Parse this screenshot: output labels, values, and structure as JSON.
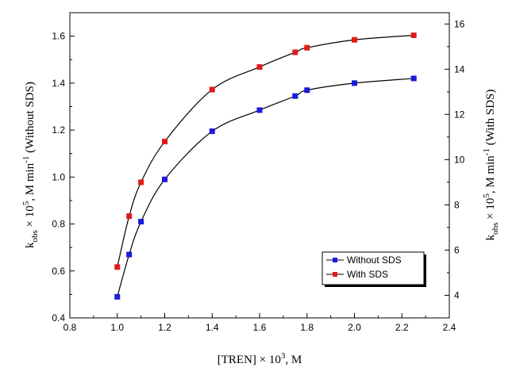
{
  "chart_data": {
    "type": "line",
    "xlabel": "[TREN] × 10",
    "xlabel_exponent": "3",
    "xlabel_unit": ", M",
    "ylabel_left": {
      "k": "k",
      "sub": "obs",
      "times": " × 10",
      "exp": "5",
      "unit": ", M min",
      "unit_exp": "-1",
      "note": " (Without SDS)"
    },
    "ylabel_right": {
      "k": "k",
      "sub": "obs",
      "times": " × 10",
      "exp": "5",
      "unit": ", M min",
      "unit_exp": "-1",
      "note": " (With SDS)"
    },
    "xlim": [
      0.8,
      2.4
    ],
    "x_ticks": [
      "0.8",
      "1.0",
      "1.2",
      "1.4",
      "1.6",
      "1.8",
      "2.0",
      "2.2",
      "2.4"
    ],
    "ylim_left": [
      0.4,
      1.7
    ],
    "y_ticks_left": [
      "0.4",
      "0.6",
      "0.8",
      "1.0",
      "1.2",
      "1.4",
      "1.6"
    ],
    "ylim_right": [
      3,
      16.5
    ],
    "y_ticks_right": [
      "4",
      "6",
      "8",
      "10",
      "12",
      "14",
      "16"
    ],
    "grid": false,
    "legend_position": "bottom-right",
    "series": [
      {
        "name": "Without SDS",
        "axis": "left",
        "color": "#1a1adb",
        "x": [
          1.0,
          1.05,
          1.1,
          1.2,
          1.4,
          1.6,
          1.75,
          1.8,
          2.0,
          2.25
        ],
        "y": [
          0.49,
          0.67,
          0.81,
          0.99,
          1.195,
          1.285,
          1.345,
          1.37,
          1.4,
          1.42
        ]
      },
      {
        "name": "With SDS",
        "axis": "right",
        "color": "#e01a1a",
        "x": [
          1.0,
          1.05,
          1.1,
          1.2,
          1.4,
          1.6,
          1.75,
          1.8,
          2.0,
          2.25
        ],
        "y": [
          5.25,
          7.5,
          9.0,
          10.8,
          13.1,
          14.1,
          14.75,
          14.95,
          15.3,
          15.5
        ]
      }
    ]
  }
}
